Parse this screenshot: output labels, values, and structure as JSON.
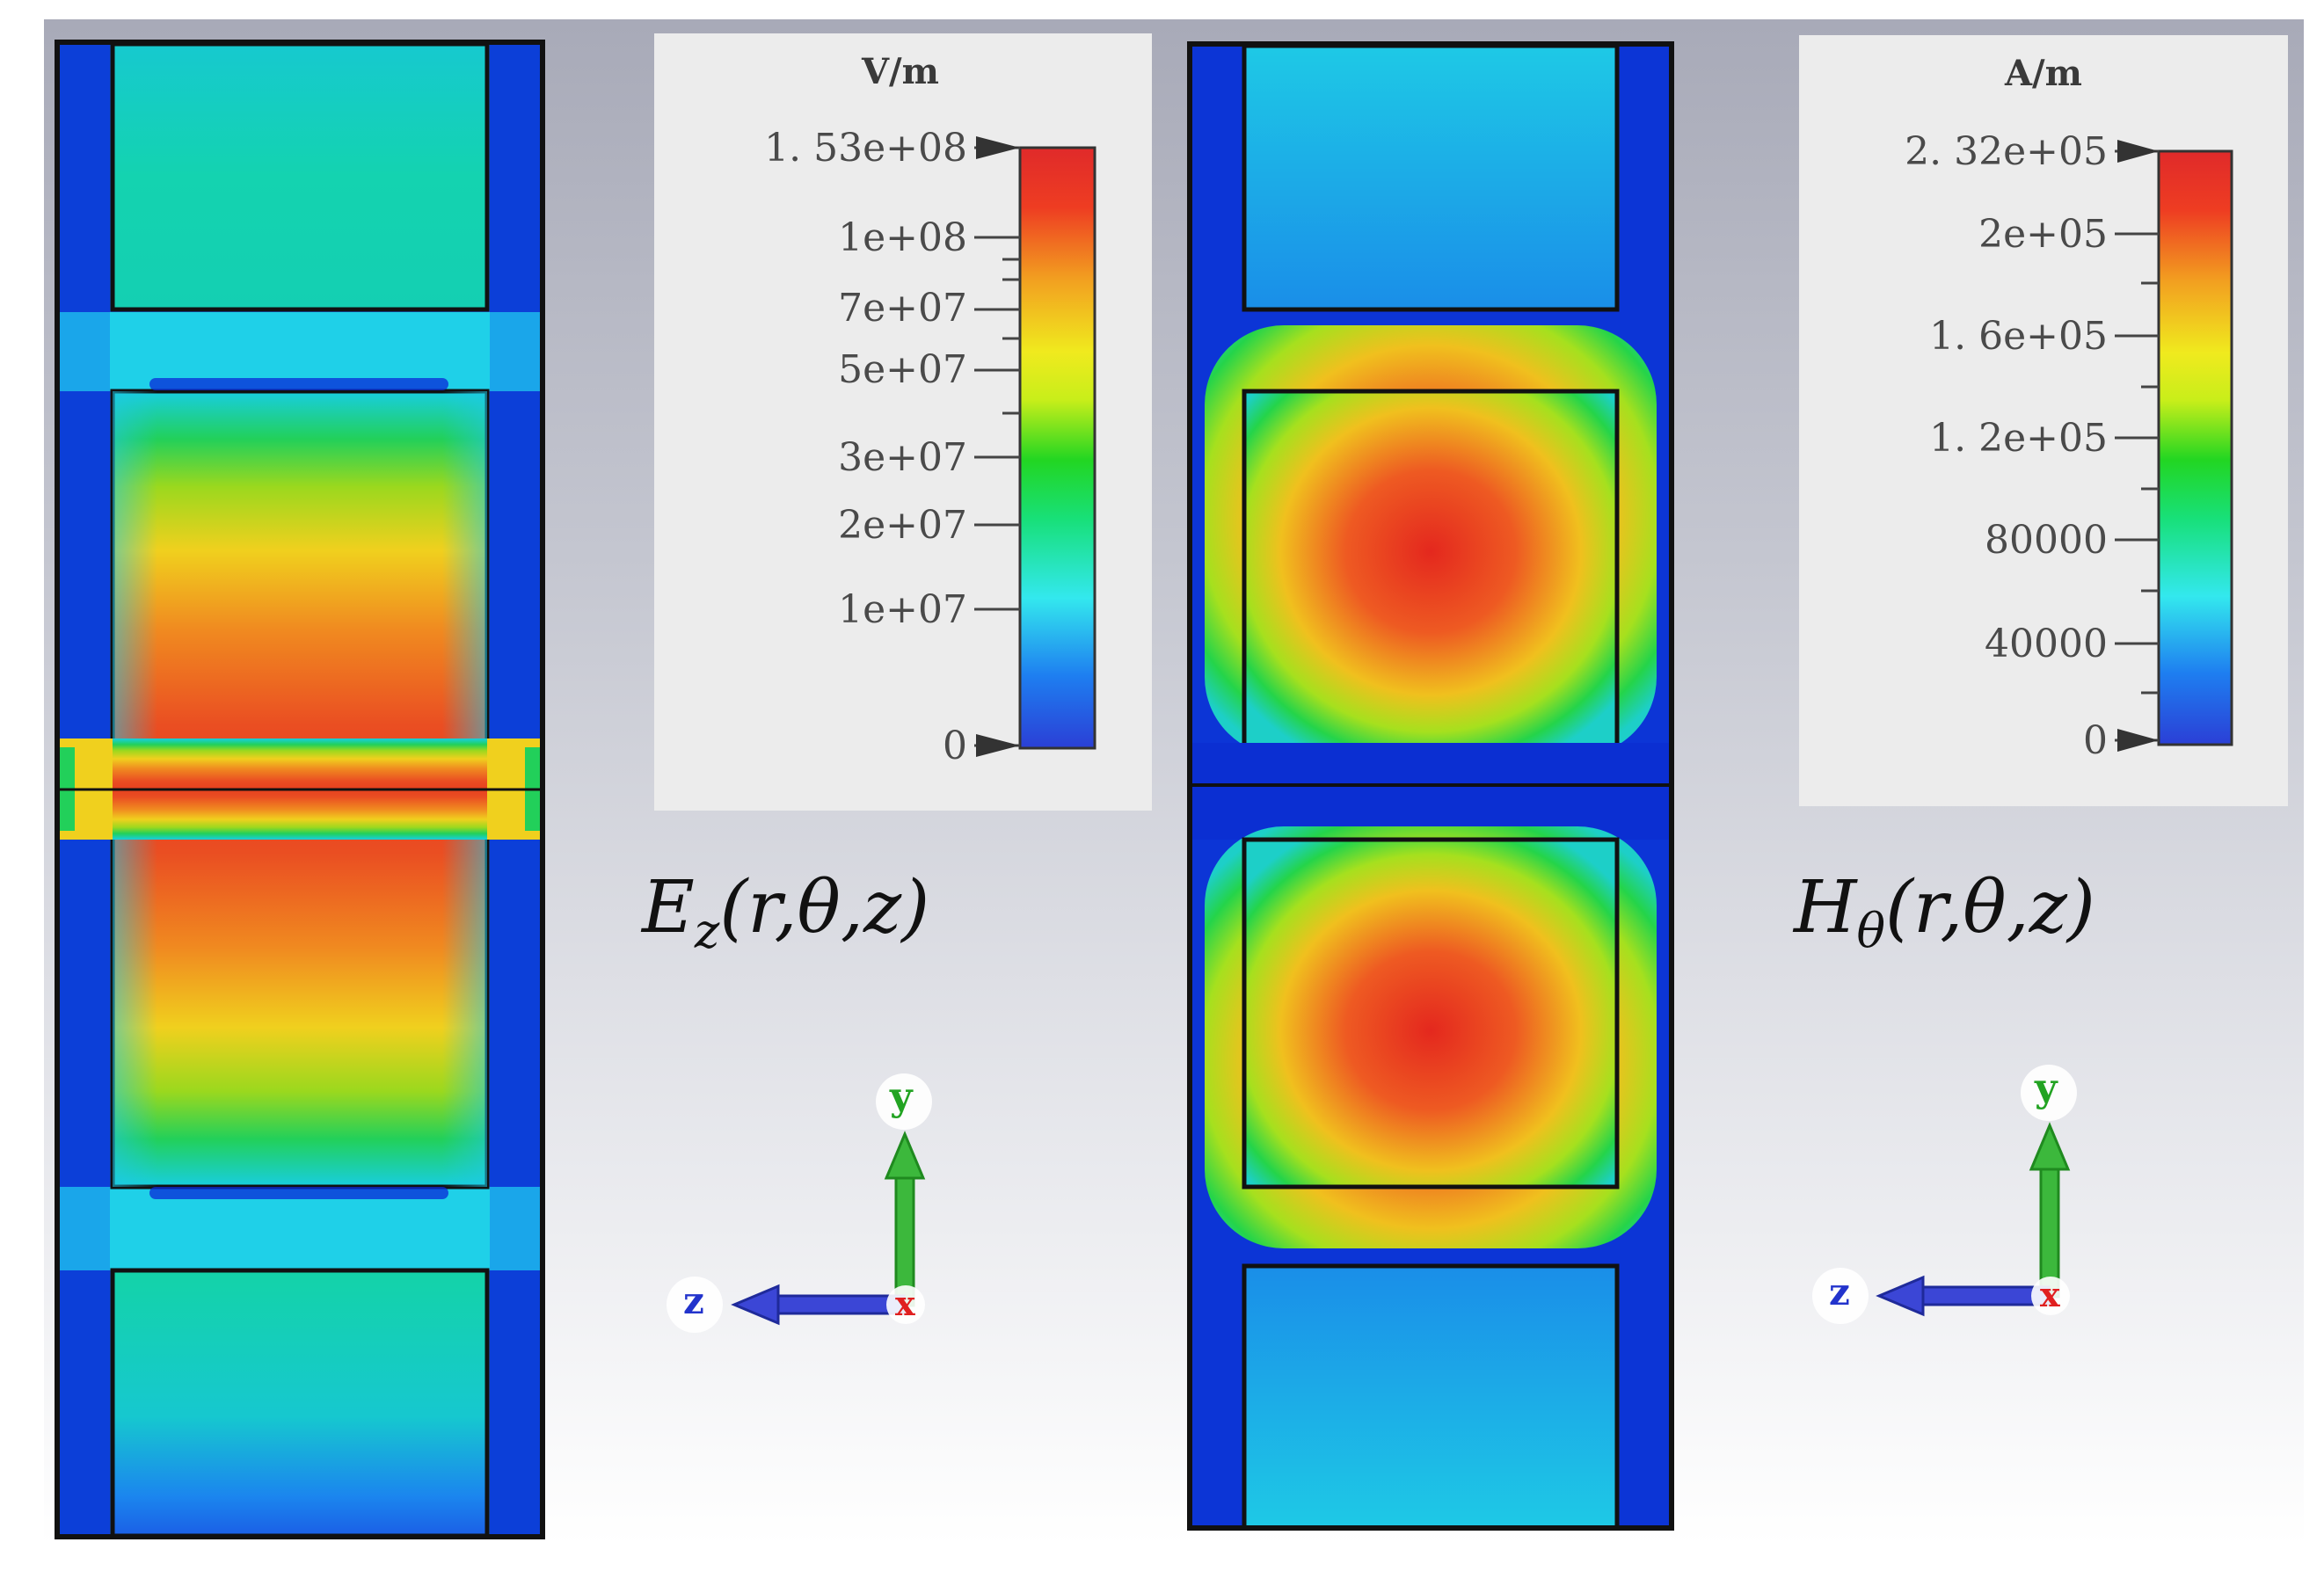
{
  "field_maps": [
    {
      "quantity": "Ez",
      "label_main": "E",
      "label_sub": "z",
      "label_args": "(r,θ,z)",
      "legend": {
        "unit": "V/m",
        "max_label": "1. 53e+08",
        "ticks": [
          "1e+08",
          "7e+07",
          "5e+07",
          "3e+07",
          "2e+07",
          "1e+07"
        ],
        "min_label": "0"
      }
    },
    {
      "quantity": "Hθ",
      "label_main": "H",
      "label_sub": "θ",
      "label_args": "(r,θ,z)",
      "legend": {
        "unit": "A/m",
        "max_label": "2. 32e+05",
        "ticks": [
          "2e+05",
          "1. 6e+05",
          "1. 2e+05",
          "80000",
          "40000"
        ],
        "min_label": "0"
      }
    }
  ],
  "axes_triad": {
    "y_label": "y",
    "z_label": "z",
    "x_label": "x"
  },
  "colormap": [
    "#2b3fd6",
    "#1e7ef0",
    "#33e8ee",
    "#18e07a",
    "#22d622",
    "#c8ee1a",
    "#f0ea1e",
    "#f2a020",
    "#ee3d22",
    "#e02a2a"
  ]
}
